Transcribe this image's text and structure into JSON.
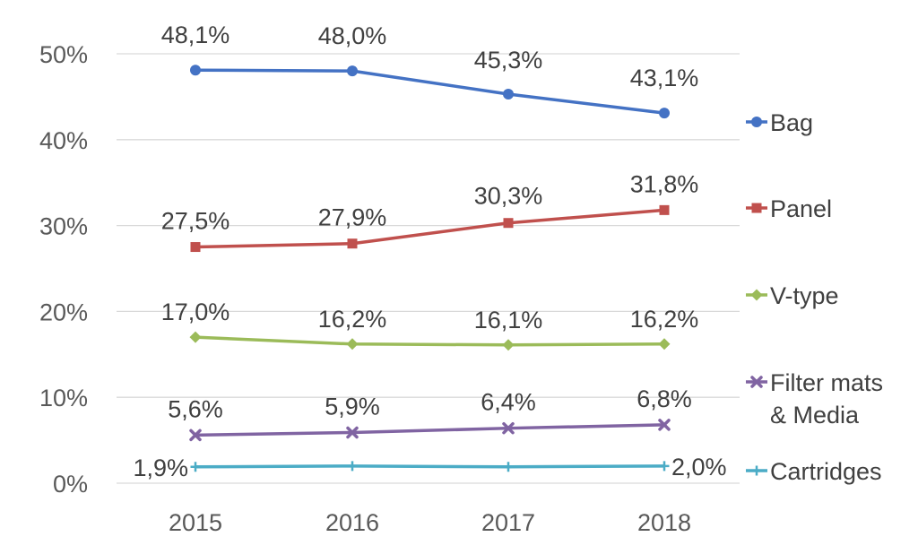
{
  "chart_data": {
    "type": "line",
    "title": "",
    "xlabel": "",
    "ylabel": "",
    "categories": [
      "2015",
      "2016",
      "2017",
      "2018"
    ],
    "ylim": [
      0,
      50
    ],
    "yticks": [
      "0%",
      "10%",
      "20%",
      "30%",
      "40%",
      "50%"
    ],
    "grid": "horizontal",
    "legend_position": "right",
    "series": [
      {
        "name": "Bag",
        "values": [
          48.1,
          48.0,
          45.3,
          43.1
        ],
        "labels": [
          "48,1%",
          "48,0%",
          "45,3%",
          "43,1%"
        ],
        "color": "#4472c4",
        "marker": "circle"
      },
      {
        "name": "Panel",
        "values": [
          27.5,
          27.9,
          30.3,
          31.8
        ],
        "labels": [
          "27,5%",
          "27,9%",
          "30,3%",
          "31,8%"
        ],
        "color": "#c0504d",
        "marker": "square"
      },
      {
        "name": "V-type",
        "values": [
          17.0,
          16.2,
          16.1,
          16.2
        ],
        "labels": [
          "17,0%",
          "16,2%",
          "16,1%",
          "16,2%"
        ],
        "color": "#9bbb59",
        "marker": "diamond"
      },
      {
        "name": "Filter mats & Media",
        "legend_lines": [
          "Filter mats",
          "& Media"
        ],
        "values": [
          5.6,
          5.9,
          6.4,
          6.8
        ],
        "labels": [
          "5,6%",
          "5,9%",
          "6,4%",
          "6,8%"
        ],
        "color": "#8064a2",
        "marker": "x"
      },
      {
        "name": "Cartridges",
        "values": [
          1.9,
          2.0,
          1.9,
          2.0
        ],
        "labels": [
          "1,9%",
          "",
          "",
          "2,0%"
        ],
        "color": "#4bacc6",
        "marker": "plus"
      }
    ]
  }
}
